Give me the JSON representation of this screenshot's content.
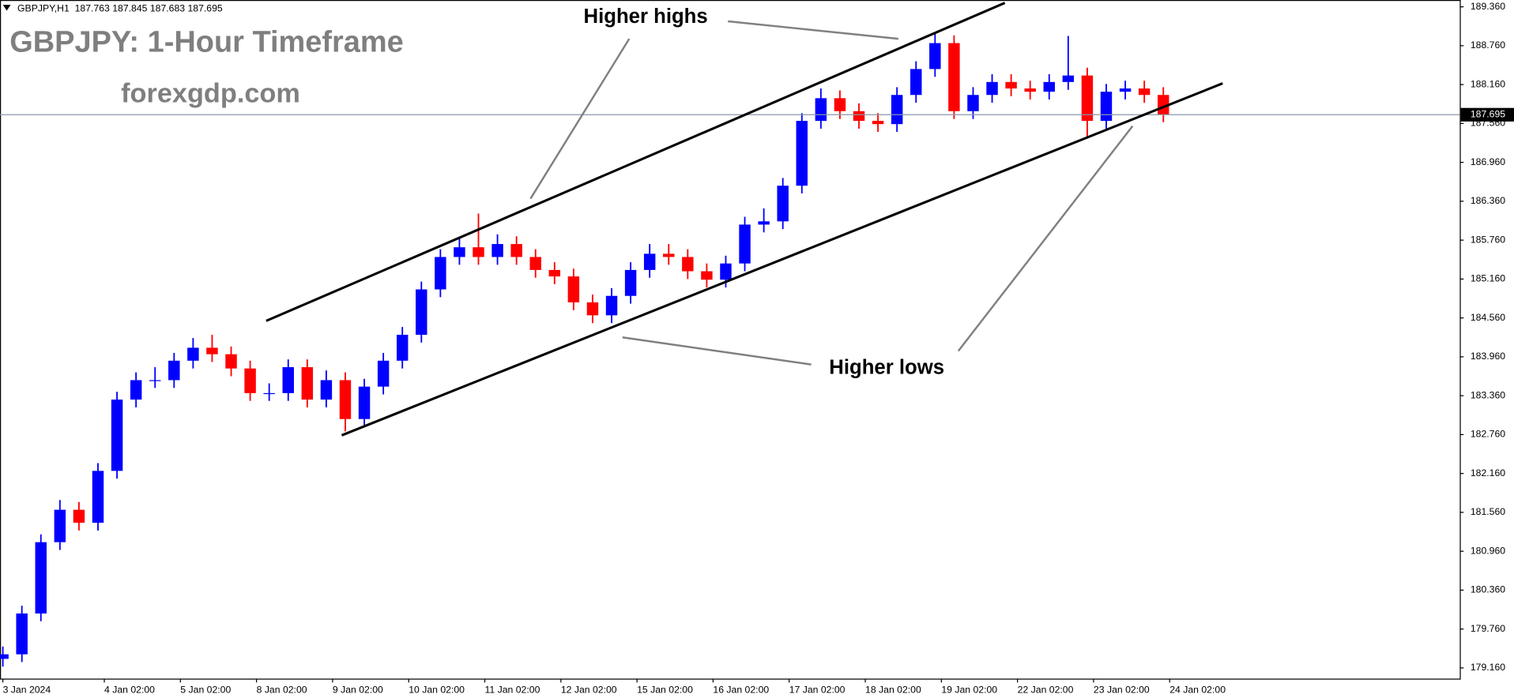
{
  "chart_data": {
    "type": "candlestick",
    "header": "GBPJPY,H1  187.763 187.845 187.683 187.695",
    "title": "GBPJPY: 1-Hour Timeframe",
    "subtitle": "forexgdp.com",
    "annotations": [
      "Higher highs",
      "Higher lows"
    ],
    "last_price": 187.695,
    "up_color": "#0000ff",
    "down_color": "#ff0000",
    "x": [
      0,
      6,
      12,
      18,
      24,
      30,
      36,
      42,
      48,
      54,
      60,
      66,
      72,
      78,
      84,
      90,
      96,
      102,
      108,
      114,
      120,
      126,
      132,
      138,
      144,
      150,
      156,
      162,
      168,
      174,
      180,
      186,
      192,
      198,
      204,
      210,
      216,
      222,
      228,
      234,
      240,
      246,
      252,
      258,
      264,
      270,
      276,
      282,
      288,
      294,
      300,
      306,
      312,
      318,
      324,
      330,
      336,
      342,
      348,
      354,
      360,
      366
    ],
    "open": [
      179.3,
      179.37,
      180.0,
      181.1,
      181.6,
      181.4,
      182.2,
      183.3,
      183.6,
      183.6,
      183.9,
      184.1,
      184.0,
      183.78,
      183.4,
      183.4,
      183.8,
      183.3,
      183.6,
      183.0,
      183.5,
      183.9,
      184.3,
      185.0,
      185.5,
      185.65,
      185.5,
      185.7,
      185.5,
      185.3,
      185.2,
      184.8,
      184.6,
      184.9,
      185.3,
      185.55,
      185.5,
      185.28,
      185.15,
      185.4,
      186.0,
      186.05,
      186.6,
      187.6,
      187.95,
      187.75,
      187.6,
      187.55,
      188.0,
      188.4,
      188.8,
      187.75,
      188.0,
      188.2,
      188.1,
      188.05,
      188.2,
      188.3,
      187.6,
      188.05,
      188.1,
      188.0
    ],
    "high": [
      179.49,
      180.12,
      181.22,
      181.75,
      181.72,
      182.32,
      183.42,
      183.72,
      183.8,
      184.02,
      184.25,
      184.3,
      184.12,
      183.9,
      183.55,
      183.92,
      183.92,
      183.75,
      183.72,
      183.62,
      184.02,
      184.42,
      185.12,
      185.62,
      185.8,
      186.17,
      185.85,
      185.82,
      185.62,
      185.42,
      185.32,
      184.92,
      185.02,
      185.42,
      185.7,
      185.7,
      185.62,
      185.4,
      185.52,
      186.12,
      186.25,
      186.72,
      187.72,
      188.1,
      188.07,
      187.87,
      187.72,
      188.12,
      188.52,
      188.95,
      188.92,
      188.12,
      188.32,
      188.32,
      188.22,
      188.32,
      188.91,
      188.42,
      188.17,
      188.22,
      188.22,
      188.12
    ],
    "low": [
      179.18,
      179.25,
      179.88,
      180.98,
      181.28,
      181.28,
      182.08,
      183.18,
      183.48,
      183.48,
      183.78,
      183.88,
      183.66,
      183.28,
      183.28,
      183.28,
      183.18,
      183.18,
      182.81,
      182.88,
      183.38,
      183.78,
      184.18,
      184.88,
      185.38,
      185.38,
      185.38,
      185.38,
      185.18,
      185.08,
      184.68,
      184.48,
      184.48,
      184.78,
      185.18,
      185.38,
      185.16,
      185.03,
      185.03,
      185.28,
      185.88,
      185.93,
      186.48,
      187.48,
      187.63,
      187.48,
      187.43,
      187.43,
      187.88,
      188.28,
      187.63,
      187.63,
      187.88,
      187.98,
      187.93,
      187.93,
      188.08,
      187.35,
      187.48,
      187.93,
      187.88,
      187.58
    ],
    "close": [
      179.37,
      180.0,
      181.1,
      181.6,
      181.4,
      182.2,
      183.3,
      183.6,
      183.6,
      183.9,
      184.1,
      184.0,
      183.78,
      183.4,
      183.4,
      183.8,
      183.3,
      183.6,
      183.0,
      183.5,
      183.9,
      184.3,
      185.0,
      185.5,
      185.65,
      185.5,
      185.7,
      185.5,
      185.3,
      185.2,
      184.8,
      184.6,
      184.9,
      185.3,
      185.55,
      185.5,
      185.28,
      185.15,
      185.4,
      186.0,
      186.05,
      186.6,
      187.6,
      187.95,
      187.75,
      187.6,
      187.55,
      188.0,
      188.4,
      188.8,
      187.75,
      188.0,
      188.2,
      188.1,
      188.05,
      188.2,
      188.3,
      187.6,
      188.05,
      188.1,
      188.0,
      187.695
    ],
    "xlim": [
      -0.9,
      459.5
    ],
    "ylim": [
      178.995,
      189.465
    ],
    "xticks": [
      {
        "value": 0,
        "label": "3 Jan 2024"
      },
      {
        "value": 32,
        "label": "4 Jan 02:00"
      },
      {
        "value": 56,
        "label": "5 Jan 02:00"
      },
      {
        "value": 80,
        "label": "8 Jan 02:00"
      },
      {
        "value": 104,
        "label": "9 Jan 02:00"
      },
      {
        "value": 128,
        "label": "10 Jan 02:00"
      },
      {
        "value": 152,
        "label": "11 Jan 02:00"
      },
      {
        "value": 176,
        "label": "12 Jan 02:00"
      },
      {
        "value": 200,
        "label": "15 Jan 02:00"
      },
      {
        "value": 224,
        "label": "16 Jan 02:00"
      },
      {
        "value": 248,
        "label": "17 Jan 02:00"
      },
      {
        "value": 272,
        "label": "18 Jan 02:00"
      },
      {
        "value": 296,
        "label": "19 Jan 02:00"
      },
      {
        "value": 320,
        "label": "22 Jan 02:00"
      },
      {
        "value": 344,
        "label": "23 Jan 02:00"
      },
      {
        "value": 368,
        "label": "24 Jan 02:00"
      }
    ],
    "yticks": [
      {
        "value": 179.16,
        "label": "179.160"
      },
      {
        "value": 179.76,
        "label": "179.760"
      },
      {
        "value": 180.36,
        "label": "180.360"
      },
      {
        "value": 180.96,
        "label": "180.960"
      },
      {
        "value": 181.56,
        "label": "181.560"
      },
      {
        "value": 182.16,
        "label": "182.160"
      },
      {
        "value": 182.76,
        "label": "182.760"
      },
      {
        "value": 183.36,
        "label": "183.360"
      },
      {
        "value": 183.96,
        "label": "183.960"
      },
      {
        "value": 184.56,
        "label": "184.560"
      },
      {
        "value": 185.16,
        "label": "185.160"
      },
      {
        "value": 185.76,
        "label": "185.760"
      },
      {
        "value": 186.36,
        "label": "186.360"
      },
      {
        "value": 186.96,
        "label": "186.960"
      },
      {
        "value": 187.56,
        "label": "187.560"
      },
      {
        "value": 188.16,
        "label": "188.160"
      },
      {
        "value": 188.76,
        "label": "188.760"
      },
      {
        "value": 189.36,
        "label": "189.360"
      }
    ]
  }
}
